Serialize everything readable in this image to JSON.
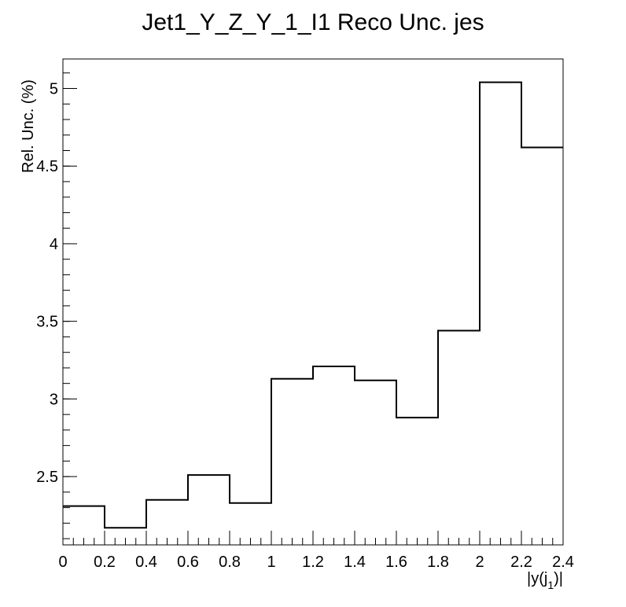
{
  "chart_data": {
    "type": "histogram-step",
    "title": "Jet1_Y_Z_Y_1_I1 Reco Unc. jes",
    "xlabel": "|y(j",
    "xlabel_sub": "1",
    "xlabel_end": ")|",
    "ylabel": "Rel. Unc. (%)",
    "xlim": [
      0,
      2.4
    ],
    "ylim": [
      2.06,
      5.19
    ],
    "grid": false,
    "x_ticks": [
      0,
      0.2,
      0.4,
      0.6,
      0.8,
      1,
      1.2,
      1.4,
      1.6,
      1.8,
      2,
      2.2,
      2.4
    ],
    "x_tick_labels": [
      "0",
      "0.2",
      "0.4",
      "0.6",
      "0.8",
      "1",
      "1.2",
      "1.4",
      "1.6",
      "1.8",
      "2",
      "2.2",
      "2.4"
    ],
    "y_ticks": [
      2.5,
      3,
      3.5,
      4,
      4.5,
      5
    ],
    "y_tick_labels": [
      "2.5",
      "3",
      "3.5",
      "4",
      "4.5",
      "5"
    ],
    "bin_edges": [
      0,
      0.2,
      0.4,
      0.6,
      0.8,
      1.0,
      1.2,
      1.4,
      1.6,
      1.8,
      2.0,
      2.2,
      2.4
    ],
    "values": [
      2.31,
      2.17,
      2.35,
      2.51,
      2.33,
      3.13,
      3.21,
      3.12,
      2.88,
      3.44,
      5.04,
      4.62
    ],
    "line_color": "#000000"
  }
}
